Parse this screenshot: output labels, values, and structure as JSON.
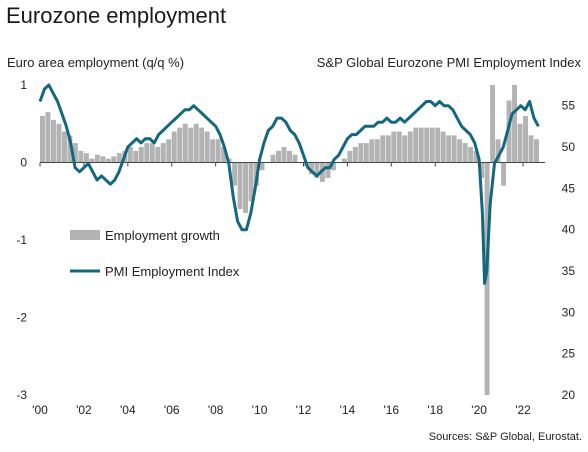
{
  "title": "Eurozone employment",
  "source": "Sources: S&P Global, Eurostat.",
  "chart_data": {
    "type": "bar+line",
    "left_axis": {
      "label": "Euro area employment (q/q %)",
      "ticks": [
        1,
        0,
        -1,
        -2,
        -3
      ],
      "ylim": [
        -3,
        1
      ]
    },
    "right_axis": {
      "label": "S&P Global Eurozone PMI Employment Index",
      "ticks": [
        55,
        50,
        45,
        40,
        35,
        30,
        25,
        20
      ],
      "ylim": [
        20,
        57.5
      ]
    },
    "x_ticks": [
      "'00",
      "'02",
      "'04",
      "'06",
      "'08",
      "'10",
      "'12",
      "'14",
      "'16",
      "'18",
      "'20",
      "'22"
    ],
    "x_range": [
      2000,
      2023
    ],
    "legend": [
      {
        "name": "Employment growth",
        "color": "#b3b3b3",
        "kind": "bar"
      },
      {
        "name": "PMI Employment Index",
        "color": "#13677e",
        "kind": "line"
      }
    ],
    "employment_growth": {
      "x": [
        2000.0,
        2000.25,
        2000.5,
        2000.75,
        2001.0,
        2001.25,
        2001.5,
        2001.75,
        2002.0,
        2002.25,
        2002.5,
        2002.75,
        2003.0,
        2003.25,
        2003.5,
        2003.75,
        2004.0,
        2004.25,
        2004.5,
        2004.75,
        2005.0,
        2005.25,
        2005.5,
        2005.75,
        2006.0,
        2006.25,
        2006.5,
        2006.75,
        2007.0,
        2007.25,
        2007.5,
        2007.75,
        2008.0,
        2008.25,
        2008.5,
        2008.75,
        2009.0,
        2009.25,
        2009.5,
        2009.75,
        2010.0,
        2010.25,
        2010.5,
        2010.75,
        2011.0,
        2011.25,
        2011.5,
        2011.75,
        2012.0,
        2012.25,
        2012.5,
        2012.75,
        2013.0,
        2013.25,
        2013.5,
        2013.75,
        2014.0,
        2014.25,
        2014.5,
        2014.75,
        2015.0,
        2015.25,
        2015.5,
        2015.75,
        2016.0,
        2016.25,
        2016.5,
        2016.75,
        2017.0,
        2017.25,
        2017.5,
        2017.75,
        2018.0,
        2018.25,
        2018.5,
        2018.75,
        2019.0,
        2019.25,
        2019.5,
        2019.75,
        2020.0,
        2020.25,
        2020.5,
        2020.75,
        2021.0,
        2021.25,
        2021.5,
        2021.75,
        2022.0,
        2022.25,
        2022.5
      ],
      "values": [
        0.6,
        0.65,
        0.55,
        0.5,
        0.4,
        0.35,
        0.25,
        0.15,
        0.12,
        0.05,
        0.1,
        0.08,
        0.05,
        0.08,
        0.12,
        0.15,
        0.2,
        0.15,
        0.2,
        0.25,
        0.25,
        0.2,
        0.25,
        0.3,
        0.4,
        0.45,
        0.5,
        0.45,
        0.5,
        0.45,
        0.4,
        0.3,
        0.3,
        0.2,
        0.05,
        -0.3,
        -0.6,
        -0.65,
        -0.5,
        -0.3,
        -0.1,
        0.0,
        0.1,
        0.15,
        0.2,
        0.15,
        0.1,
        0.0,
        -0.05,
        -0.15,
        -0.2,
        -0.25,
        -0.2,
        -0.1,
        0.0,
        0.05,
        0.15,
        0.2,
        0.25,
        0.25,
        0.3,
        0.3,
        0.35,
        0.35,
        0.4,
        0.4,
        0.35,
        0.4,
        0.45,
        0.45,
        0.45,
        0.45,
        0.45,
        0.4,
        0.35,
        0.35,
        0.3,
        0.25,
        0.2,
        0.15,
        -0.2,
        -3.0,
        1.0,
        0.3,
        -0.3,
        0.8,
        1.0,
        0.5,
        0.6,
        0.35,
        0.3
      ]
    },
    "pmi_employment_index": {
      "x": [
        2000.0,
        2000.2,
        2000.4,
        2000.6,
        2000.8,
        2001.0,
        2001.2,
        2001.4,
        2001.6,
        2001.8,
        2002.0,
        2002.2,
        2002.4,
        2002.6,
        2002.8,
        2003.0,
        2003.2,
        2003.4,
        2003.6,
        2003.8,
        2004.0,
        2004.2,
        2004.4,
        2004.6,
        2004.8,
        2005.0,
        2005.2,
        2005.4,
        2005.6,
        2005.8,
        2006.0,
        2006.2,
        2006.4,
        2006.6,
        2006.8,
        2007.0,
        2007.2,
        2007.4,
        2007.6,
        2007.8,
        2008.0,
        2008.2,
        2008.4,
        2008.6,
        2008.8,
        2009.0,
        2009.2,
        2009.4,
        2009.6,
        2009.8,
        2010.0,
        2010.2,
        2010.4,
        2010.6,
        2010.8,
        2011.0,
        2011.2,
        2011.4,
        2011.6,
        2011.8,
        2012.0,
        2012.2,
        2012.4,
        2012.6,
        2012.8,
        2013.0,
        2013.2,
        2013.4,
        2013.6,
        2013.8,
        2014.0,
        2014.2,
        2014.4,
        2014.6,
        2014.8,
        2015.0,
        2015.2,
        2015.4,
        2015.6,
        2015.8,
        2016.0,
        2016.2,
        2016.4,
        2016.6,
        2016.8,
        2017.0,
        2017.2,
        2017.4,
        2017.6,
        2017.8,
        2018.0,
        2018.2,
        2018.4,
        2018.6,
        2018.8,
        2019.0,
        2019.2,
        2019.4,
        2019.6,
        2019.8,
        2020.0,
        2020.15,
        2020.25,
        2020.35,
        2020.5,
        2020.7,
        2020.9,
        2021.1,
        2021.3,
        2021.5,
        2021.7,
        2021.9,
        2022.1,
        2022.3,
        2022.5,
        2022.7
      ],
      "values": [
        55.5,
        57.0,
        57.5,
        56.5,
        55.5,
        54.0,
        52.5,
        50.5,
        47.5,
        47.0,
        47.5,
        48.0,
        47.0,
        46.0,
        46.5,
        46.0,
        45.5,
        46.0,
        47.0,
        48.5,
        50.0,
        50.5,
        51.0,
        50.5,
        51.0,
        51.0,
        50.5,
        51.5,
        52.0,
        52.5,
        53.0,
        53.5,
        54.0,
        54.5,
        54.5,
        55.0,
        54.5,
        54.0,
        53.5,
        53.0,
        52.5,
        51.5,
        50.0,
        48.0,
        44.0,
        41.0,
        40.0,
        40.0,
        42.0,
        45.0,
        48.5,
        50.5,
        52.0,
        52.5,
        53.5,
        53.5,
        53.0,
        52.0,
        51.5,
        50.5,
        49.0,
        47.5,
        47.0,
        46.5,
        47.0,
        47.5,
        47.5,
        48.5,
        49.0,
        50.0,
        51.0,
        51.5,
        51.5,
        52.0,
        52.5,
        52.5,
        52.5,
        53.0,
        53.0,
        53.5,
        53.0,
        53.0,
        53.5,
        53.0,
        53.5,
        54.0,
        54.5,
        55.0,
        55.5,
        55.5,
        55.0,
        55.5,
        55.0,
        55.0,
        54.5,
        53.5,
        52.5,
        52.0,
        51.5,
        50.5,
        48.5,
        42.0,
        33.5,
        35.0,
        43.0,
        48.0,
        49.0,
        50.0,
        52.0,
        54.0,
        54.5,
        55.0,
        54.5,
        55.5,
        53.5,
        52.5
      ]
    }
  }
}
